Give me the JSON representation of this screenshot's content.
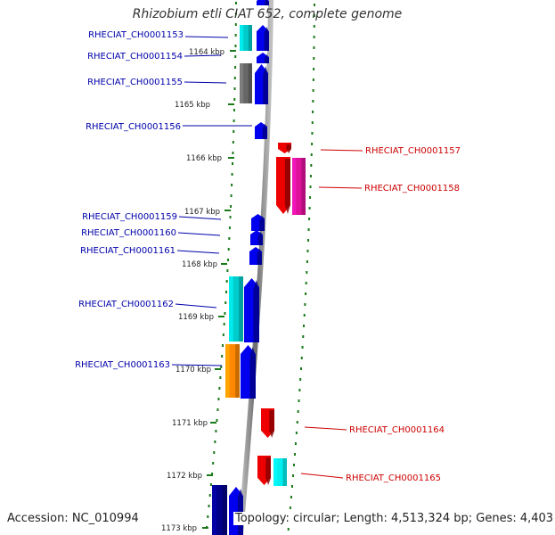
{
  "title": "Rhizobium etli CIAT 652, complete genome",
  "footer": {
    "accession": "Accession: NC_010994",
    "stats": "Topology: circular; Length: 4,513,324 bp; Genes: 4,403"
  },
  "colors": {
    "left_label": "#0000aa",
    "right_label": "#cc0000",
    "axis": "#8c8c8c",
    "tick": "#1a7a1a"
  },
  "axis_ticks": [
    {
      "label": "1164 kbp"
    },
    {
      "label": "1165 kbp"
    },
    {
      "label": "1166 kbp"
    },
    {
      "label": "1167 kbp"
    },
    {
      "label": "1168 kbp"
    },
    {
      "label": "1169 kbp"
    },
    {
      "label": "1170 kbp"
    },
    {
      "label": "1171 kbp"
    },
    {
      "label": "1172 kbp"
    },
    {
      "label": "1173 kbp"
    }
  ],
  "genes": [
    {
      "name": "",
      "side": "left",
      "strand": "+",
      "color": "#0000ee",
      "box_color": ""
    },
    {
      "name": "RHECIAT_CH0001153",
      "side": "left",
      "strand": "+",
      "color": "#0000ee",
      "box_color": "#00cccc"
    },
    {
      "name": "RHECIAT_CH0001154",
      "side": "left",
      "strand": "+",
      "color": "#0000ee",
      "box_color": ""
    },
    {
      "name": "RHECIAT_CH0001155",
      "side": "left",
      "strand": "+",
      "color": "#0000ee",
      "box_color": "#666666"
    },
    {
      "name": "RHECIAT_CH0001156",
      "side": "left",
      "strand": "+",
      "color": "#0000ee",
      "box_color": ""
    },
    {
      "name": "RHECIAT_CH0001157",
      "side": "right",
      "strand": "-",
      "color": "#ee0000",
      "box_color": ""
    },
    {
      "name": "RHECIAT_CH0001158",
      "side": "right",
      "strand": "-",
      "color": "#ee0000",
      "box_color": "#dd1199"
    },
    {
      "name": "RHECIAT_CH0001159",
      "side": "left",
      "strand": "+",
      "color": "#0000ee",
      "box_color": ""
    },
    {
      "name": "RHECIAT_CH0001160",
      "side": "left",
      "strand": "+",
      "color": "#0000ee",
      "box_color": ""
    },
    {
      "name": "RHECIAT_CH0001161",
      "side": "left",
      "strand": "+",
      "color": "#0000ee",
      "box_color": ""
    },
    {
      "name": "RHECIAT_CH0001162",
      "side": "left",
      "strand": "+",
      "color": "#0000ee",
      "box_color": "#00cccc"
    },
    {
      "name": "RHECIAT_CH0001163",
      "side": "left",
      "strand": "+",
      "color": "#0000ee",
      "box_color": "#ff8800"
    },
    {
      "name": "RHECIAT_CH0001164",
      "side": "right",
      "strand": "-",
      "color": "#ee0000",
      "box_color": ""
    },
    {
      "name": "RHECIAT_CH0001165",
      "side": "right",
      "strand": "-",
      "color": "#ee0000",
      "box_color": "#00eeee"
    },
    {
      "name": "",
      "side": "left",
      "strand": "+",
      "color": "#0000ee",
      "box_color": "#000088"
    }
  ]
}
